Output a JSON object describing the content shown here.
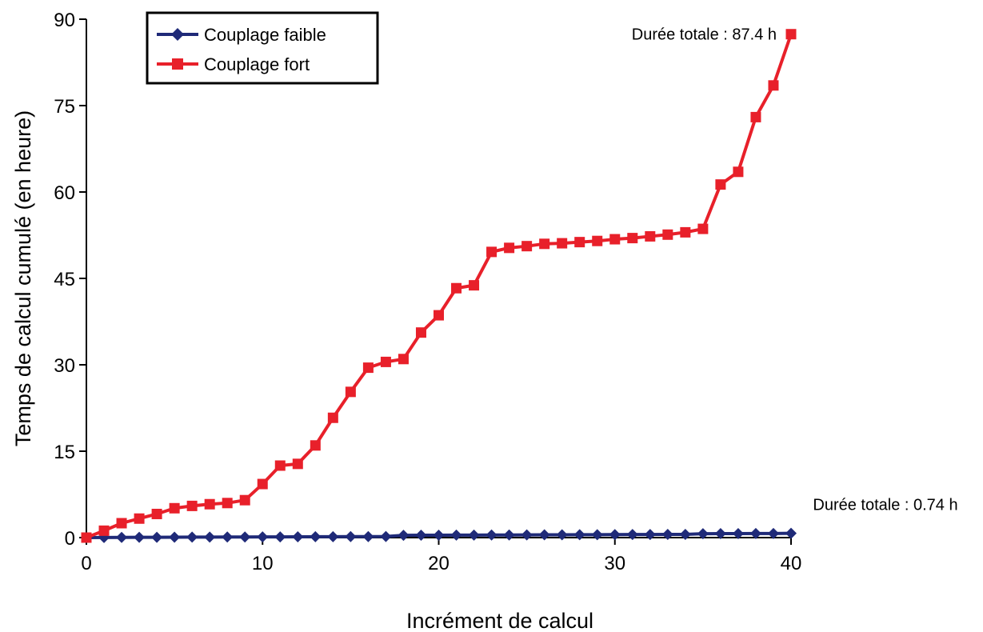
{
  "chart_data": {
    "type": "line",
    "title": "",
    "xlabel": "Incrément de calcul",
    "ylabel": "Temps de calcul cumulé (en heure)",
    "xlim": [
      0,
      40
    ],
    "ylim": [
      0,
      90
    ],
    "xticks": [
      0,
      10,
      20,
      30,
      40
    ],
    "yticks": [
      0,
      15,
      30,
      45,
      60,
      75,
      90
    ],
    "grid": false,
    "legend_position": "top-left",
    "x": [
      0,
      1,
      2,
      3,
      4,
      5,
      6,
      7,
      8,
      9,
      10,
      11,
      12,
      13,
      14,
      15,
      16,
      17,
      18,
      19,
      20,
      21,
      22,
      23,
      24,
      25,
      26,
      27,
      28,
      29,
      30,
      31,
      32,
      33,
      34,
      35,
      36,
      37,
      38,
      39,
      40
    ],
    "series": [
      {
        "name": "Couplage faible",
        "color": "#1f2a78",
        "marker": "diamond",
        "values": [
          0,
          0.02,
          0.04,
          0.05,
          0.06,
          0.07,
          0.08,
          0.09,
          0.1,
          0.11,
          0.12,
          0.13,
          0.14,
          0.15,
          0.16,
          0.17,
          0.18,
          0.19,
          0.4,
          0.41,
          0.42,
          0.43,
          0.44,
          0.45,
          0.46,
          0.47,
          0.48,
          0.49,
          0.5,
          0.51,
          0.52,
          0.53,
          0.54,
          0.55,
          0.56,
          0.68,
          0.69,
          0.7,
          0.71,
          0.72,
          0.74
        ]
      },
      {
        "name": "Couplage fort",
        "color": "#e8202a",
        "marker": "square",
        "values": [
          0,
          1.2,
          2.5,
          3.3,
          4.1,
          5.1,
          5.5,
          5.8,
          6.0,
          6.5,
          9.3,
          12.5,
          12.8,
          16.0,
          20.8,
          25.3,
          29.5,
          30.5,
          31.0,
          35.6,
          38.6,
          43.3,
          43.8,
          49.6,
          50.3,
          50.6,
          51.0,
          51.1,
          51.3,
          51.5,
          51.8,
          52.0,
          52.3,
          52.6,
          53.0,
          53.6,
          61.3,
          63.5,
          73.0,
          78.5,
          87.4
        ]
      }
    ],
    "annotations": [
      {
        "text": "Durée totale : 87.4 h",
        "series": 1
      },
      {
        "text": "Durée totale : 0.74 h",
        "series": 0
      }
    ]
  }
}
